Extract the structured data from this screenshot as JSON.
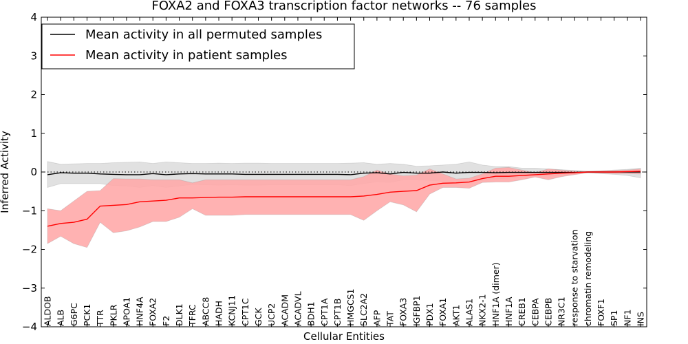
{
  "chart_data": {
    "type": "line",
    "title": "FOXA2 and FOXA3 transcription factor networks -- 76 samples",
    "xlabel": "Cellular Entities",
    "ylabel": "Inferred Activity",
    "ylim": [
      -4,
      4
    ],
    "yticks": [
      "−4",
      "−3",
      "−2",
      "−1",
      "0",
      "1",
      "2",
      "3",
      "4"
    ],
    "legend_position": "top-left",
    "categories": [
      "ALDOB",
      "ALB",
      "G6PC",
      "PCK1",
      "TTR",
      "PKLR",
      "APOA1",
      "HNF4A",
      "FOXA2",
      "F2",
      "DLK1",
      "TFRC",
      "ABCC8",
      "HADH",
      "KCNJ11",
      "CPT1C",
      "GCK",
      "UCP2",
      "ACADM",
      "ACADVL",
      "BDH1",
      "CPT1A",
      "CPT1B",
      "HMGCS1",
      "SLC2A2",
      "AFP",
      "TAT",
      "FOXA3",
      "IGFBP1",
      "PDX1",
      "FOXA1",
      "AKT1",
      "ALAS1",
      "NKX2-1",
      "HNF1A (dimer)",
      "HNF1A",
      "CREB1",
      "CEBPA",
      "CEBPB",
      "NR3C1",
      "response to starvation",
      "chromatin remodeling",
      "FOXF1",
      "SP1",
      "NF1",
      "INS"
    ],
    "series": [
      {
        "name": "Mean activity in all permuted samples",
        "color": "#000000",
        "values": [
          -0.07,
          -0.02,
          -0.03,
          -0.03,
          -0.05,
          -0.06,
          -0.07,
          -0.07,
          -0.04,
          -0.07,
          -0.05,
          -0.04,
          -0.05,
          -0.05,
          -0.05,
          -0.06,
          -0.06,
          -0.06,
          -0.06,
          -0.06,
          -0.06,
          -0.06,
          -0.06,
          -0.07,
          -0.03,
          -0.02,
          -0.05,
          -0.01,
          -0.03,
          -0.03,
          0.0,
          -0.03,
          -0.01,
          -0.01,
          -0.02,
          -0.01,
          -0.01,
          -0.01,
          -0.01,
          -0.01,
          -0.01,
          0.0,
          0.0,
          0.0,
          0.0,
          0.0
        ],
        "band_upper": [
          0.27,
          0.2,
          0.21,
          0.22,
          0.22,
          0.24,
          0.25,
          0.26,
          0.22,
          0.26,
          0.24,
          0.22,
          0.22,
          0.23,
          0.22,
          0.23,
          0.23,
          0.22,
          0.22,
          0.22,
          0.22,
          0.22,
          0.22,
          0.23,
          0.24,
          0.2,
          0.22,
          0.2,
          0.15,
          0.16,
          0.18,
          0.2,
          0.26,
          0.18,
          0.14,
          0.14,
          0.1,
          0.1,
          0.08,
          0.06,
          0.04,
          0.02,
          0.03,
          0.05,
          0.07,
          0.1
        ],
        "band_lower": [
          -0.4,
          -0.3,
          -0.3,
          -0.3,
          -0.3,
          -0.35,
          -0.36,
          -0.4,
          -0.35,
          -0.4,
          -0.36,
          -0.32,
          -0.33,
          -0.34,
          -0.33,
          -0.34,
          -0.34,
          -0.33,
          -0.33,
          -0.33,
          -0.33,
          -0.33,
          -0.33,
          -0.35,
          -0.3,
          -0.25,
          -0.27,
          -0.2,
          -0.2,
          -0.22,
          -0.24,
          -0.24,
          -0.25,
          -0.22,
          -0.18,
          -0.16,
          -0.12,
          -0.1,
          -0.09,
          -0.08,
          -0.05,
          -0.02,
          -0.04,
          -0.06,
          -0.09,
          -0.15
        ]
      },
      {
        "name": "Mean activity in patient samples",
        "color": "#ff0000",
        "band_color": "#ffaaaa",
        "values": [
          -1.4,
          -1.33,
          -1.3,
          -1.22,
          -0.88,
          -0.86,
          -0.84,
          -0.77,
          -0.75,
          -0.73,
          -0.67,
          -0.67,
          -0.66,
          -0.65,
          -0.65,
          -0.64,
          -0.64,
          -0.64,
          -0.64,
          -0.64,
          -0.64,
          -0.64,
          -0.64,
          -0.64,
          -0.62,
          -0.58,
          -0.52,
          -0.5,
          -0.48,
          -0.34,
          -0.29,
          -0.28,
          -0.26,
          -0.17,
          -0.11,
          -0.11,
          -0.09,
          -0.07,
          -0.05,
          -0.03,
          -0.02,
          0.0,
          0.0,
          0.0,
          0.01,
          0.02
        ],
        "band_upper": [
          -0.95,
          -1.0,
          -0.75,
          -0.5,
          -0.48,
          -0.17,
          -0.18,
          -0.18,
          -0.2,
          -0.2,
          -0.2,
          -0.28,
          -0.2,
          -0.2,
          -0.2,
          -0.2,
          -0.2,
          -0.2,
          -0.2,
          -0.2,
          -0.2,
          -0.2,
          -0.2,
          -0.2,
          -0.12,
          0.05,
          -0.05,
          -0.1,
          -0.08,
          0.08,
          -0.05,
          -0.18,
          -0.16,
          -0.05,
          0.1,
          0.12,
          0.05,
          -0.02,
          0.08,
          0.05,
          0.02,
          0.01,
          0.03,
          0.04,
          0.05,
          0.08
        ],
        "band_lower": [
          -1.85,
          -1.66,
          -1.85,
          -1.95,
          -1.3,
          -1.57,
          -1.52,
          -1.42,
          -1.28,
          -1.28,
          -1.17,
          -0.95,
          -1.12,
          -1.12,
          -1.12,
          -1.1,
          -1.1,
          -1.1,
          -1.1,
          -1.1,
          -1.1,
          -1.1,
          -1.1,
          -1.1,
          -1.25,
          -1.0,
          -0.77,
          -0.85,
          -1.03,
          -0.57,
          -0.4,
          -0.4,
          -0.42,
          -0.27,
          -0.26,
          -0.26,
          -0.2,
          -0.13,
          -0.2,
          -0.12,
          -0.07,
          -0.02,
          -0.03,
          -0.04,
          -0.04,
          -0.05
        ]
      }
    ]
  }
}
